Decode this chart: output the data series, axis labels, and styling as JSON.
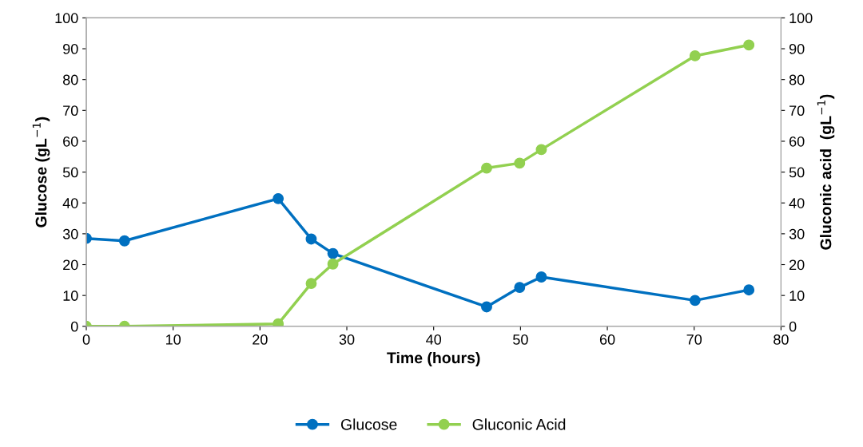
{
  "chart_data": {
    "type": "line",
    "xlabel": "Time (hours)",
    "ylabel": "Glucose (gL$^{−1}$)",
    "y2label": "Gluconic acid  (gL$^{−1}$)",
    "xlim": [
      0,
      80
    ],
    "xticks": [
      0,
      10,
      20,
      30,
      40,
      50,
      60,
      70,
      80
    ],
    "ylim": [
      0,
      100
    ],
    "yticks": [
      0,
      10,
      20,
      30,
      40,
      50,
      60,
      70,
      80,
      90,
      100
    ],
    "y2lim": [
      0,
      100
    ],
    "y2ticks": [
      0,
      10,
      20,
      30,
      40,
      50,
      60,
      70,
      80,
      90,
      100
    ],
    "x": [
      0,
      4.4,
      22.1,
      25.9,
      28.4,
      46.1,
      49.9,
      52.4,
      70.1,
      76.3
    ],
    "series": [
      {
        "name": "Glucose",
        "color": "#0070c0",
        "values": [
          28.5,
          27.7,
          41.4,
          28.3,
          23.6,
          6.3,
          12.6,
          16.0,
          8.4,
          11.8
        ]
      },
      {
        "name": "Gluconic Acid",
        "color": "#92d050",
        "axis": "y2",
        "values": [
          0,
          0,
          0.8,
          13.9,
          20.2,
          51.3,
          52.9,
          57.3,
          87.7,
          91.2
        ]
      }
    ],
    "marker": "circle",
    "line_style": "solid",
    "grid": false,
    "legend": "bottom"
  }
}
